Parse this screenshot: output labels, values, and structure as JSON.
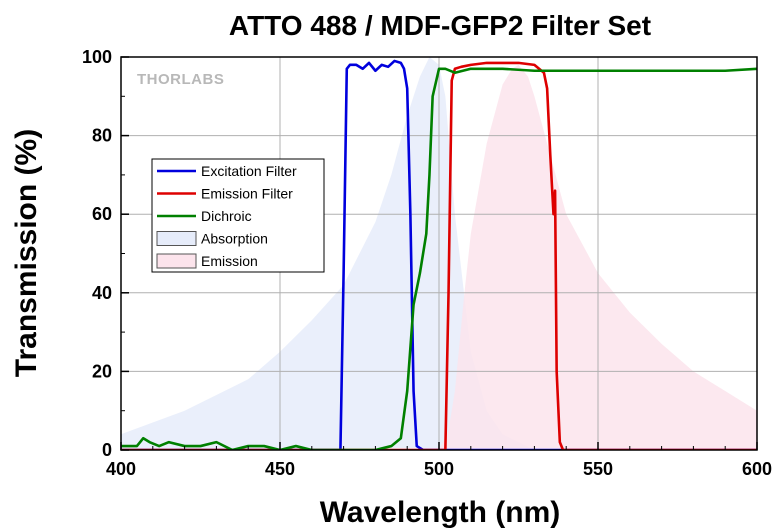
{
  "chart_data": {
    "type": "line",
    "title": "ATTO 488 / MDF-GFP2 Filter Set",
    "xlabel": "Wavelength (nm)",
    "ylabel": "Transmission (%)",
    "xlim": [
      400,
      600
    ],
    "ylim": [
      0,
      100
    ],
    "xticks": [
      400,
      450,
      500,
      550,
      600
    ],
    "yticks": [
      0,
      20,
      40,
      60,
      80,
      100
    ],
    "xtick_labels": [
      "400",
      "450",
      "500",
      "550",
      "600"
    ],
    "ytick_labels": [
      "0",
      "20",
      "40",
      "60",
      "80",
      "100"
    ],
    "grid": true,
    "legend_position": "left-middle",
    "watermark": "THORLABS",
    "series": [
      {
        "name": "Excitation Filter",
        "kind": "line",
        "color": "#0000dd",
        "x": [
          400,
          465,
          469,
          470,
          471,
          472,
          474,
          476,
          478,
          480,
          482,
          484,
          486,
          488,
          489,
          490,
          491,
          492,
          493,
          495,
          500,
          600
        ],
        "y": [
          0,
          0,
          0,
          45,
          97,
          98,
          98,
          97,
          98.5,
          96.5,
          98,
          97.5,
          99,
          98.5,
          97,
          92,
          60,
          15,
          1,
          0,
          0,
          0
        ]
      },
      {
        "name": "Emission Filter",
        "kind": "line",
        "color": "#dd0000",
        "x": [
          400,
          500,
          502,
          503,
          504,
          505,
          507,
          510,
          515,
          520,
          525,
          530,
          533,
          534,
          535,
          536,
          536.5,
          537,
          538,
          539,
          545,
          600
        ],
        "y": [
          0,
          0,
          0,
          40,
          94,
          97,
          97.5,
          98,
          98.5,
          98.5,
          98.5,
          98,
          96,
          92,
          75,
          60,
          66,
          20,
          2,
          0,
          0,
          0
        ]
      },
      {
        "name": "Dichroic",
        "kind": "line",
        "color": "#008000",
        "x": [
          400,
          405,
          407,
          409,
          412,
          415,
          420,
          425,
          430,
          435,
          440,
          445,
          450,
          455,
          460,
          465,
          470,
          480,
          485,
          488,
          490,
          492,
          494,
          496,
          497,
          498,
          500,
          502,
          505,
          510,
          520,
          530,
          540,
          550,
          560,
          570,
          580,
          590,
          600
        ],
        "y": [
          1,
          1,
          3,
          2,
          1,
          2,
          1,
          1,
          2,
          0,
          1,
          1,
          0,
          1,
          0,
          0,
          0,
          0,
          1,
          3,
          15,
          37,
          45,
          55,
          70,
          90,
          97,
          97,
          96,
          97,
          97,
          96.5,
          96.5,
          96.5,
          96.5,
          96.5,
          96.5,
          96.5,
          97
        ]
      },
      {
        "name": "Absorption",
        "kind": "area",
        "color": "#e6ecfa",
        "x": [
          400,
          420,
          440,
          450,
          460,
          470,
          480,
          485,
          490,
          494,
          497,
          500,
          502,
          505,
          510,
          515,
          520,
          525,
          530
        ],
        "y": [
          4,
          10,
          18,
          25,
          33,
          42,
          58,
          70,
          85,
          95,
          100,
          98,
          90,
          60,
          25,
          10,
          4,
          2,
          0
        ]
      },
      {
        "name": "Emission",
        "kind": "area",
        "color": "#fce4ec",
        "x": [
          500,
          503,
          505,
          508,
          510,
          515,
          520,
          523,
          525,
          528,
          530,
          535,
          540,
          550,
          560,
          570,
          580,
          590,
          600
        ],
        "y": [
          0,
          5,
          15,
          40,
          55,
          78,
          93,
          97,
          98,
          95,
          90,
          75,
          60,
          45,
          35,
          27,
          20,
          15,
          10
        ]
      }
    ]
  }
}
